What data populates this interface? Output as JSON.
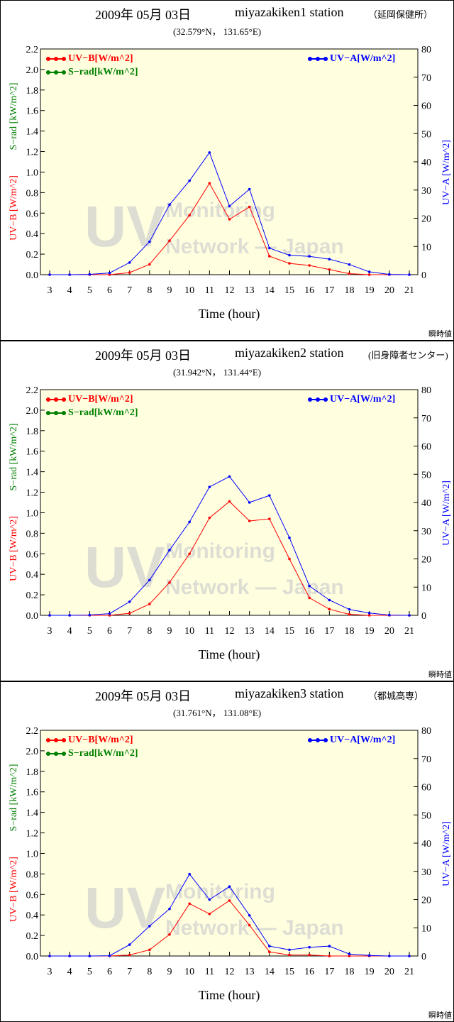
{
  "colors": {
    "uvb": "#ff0000",
    "srad": "#008000",
    "uva": "#0000ff",
    "plot_bg": "#ffffe0"
  },
  "watermark": [
    "UV",
    "Monitoring",
    "Network — Japan"
  ],
  "chart_data": [
    {
      "type": "line",
      "date": "2009年 05月 03日",
      "station": "miyazakiken1 station",
      "place": "（延岡保健所）",
      "coords": "(32.579°N， 131.65°E)",
      "mode_label": "瞬時値",
      "xlabel": "Time (hour)",
      "ylabel_left_red": "UV−B [W/m^2]",
      "ylabel_left_green": "S−rad [kW/m^2]",
      "ylabel_right": "UV−A [W/m^2]",
      "x": [
        3,
        4,
        5,
        6,
        7,
        8,
        9,
        10,
        11,
        12,
        13,
        14,
        15,
        16,
        17,
        18,
        19,
        20,
        21
      ],
      "xlim": [
        3,
        21
      ],
      "ylim_left": [
        0,
        2.2
      ],
      "ylim_right": [
        0,
        80
      ],
      "yticks_left": [
        "0.0",
        "0.2",
        "0.4",
        "0.6",
        "0.8",
        "1.0",
        "1.2",
        "1.4",
        "1.6",
        "1.8",
        "2.0",
        "2.2"
      ],
      "yticks_right": [
        "0",
        "10",
        "20",
        "30",
        "40",
        "50",
        "60",
        "70",
        "80"
      ],
      "legend": [
        "UV−B[W/m^2]",
        "S−rad[kW/m^2]",
        "UV−A[W/m^2]"
      ],
      "series": [
        {
          "name": "UV−B[W/m^2]",
          "axis": "left",
          "color": "#ff0000",
          "x": [
            3,
            4,
            5,
            6,
            7,
            8,
            9,
            10,
            11,
            12,
            13,
            14,
            15,
            16,
            17,
            18,
            19,
            20,
            21
          ],
          "values": [
            0,
            0,
            0,
            0,
            0.02,
            0.1,
            0.33,
            0.58,
            0.89,
            0.54,
            0.66,
            0.18,
            0.11,
            0.09,
            0.05,
            0.01,
            0,
            0,
            0
          ]
        },
        {
          "name": "UV−A[W/m^2]",
          "axis": "right",
          "color": "#0000ff",
          "x": [
            3,
            4,
            5,
            6,
            7,
            8,
            9,
            10,
            11,
            12,
            13,
            14,
            15,
            16,
            17,
            18,
            19,
            20,
            21
          ],
          "values": [
            0,
            0,
            0.1,
            0.6,
            4.3,
            11.7,
            24.8,
            33.3,
            43.3,
            24.3,
            30.3,
            9.4,
            6.9,
            6.5,
            5.5,
            3.6,
            1,
            0.1,
            0
          ]
        }
      ]
    },
    {
      "type": "line",
      "date": "2009年 05月 03日",
      "station": "miyazakiken2 station",
      "place": "(旧身障者センター)",
      "coords": "(31.942°N， 131.44°E)",
      "mode_label": "瞬時値",
      "xlabel": "Time (hour)",
      "ylabel_left_red": "UV−B [W/m^2]",
      "ylabel_left_green": "S−rad [kW/m^2]",
      "ylabel_right": "UV−A [W/m^2]",
      "x": [
        3,
        4,
        5,
        6,
        7,
        8,
        9,
        10,
        11,
        12,
        13,
        14,
        15,
        16,
        17,
        18,
        19,
        20,
        21
      ],
      "xlim": [
        3,
        21
      ],
      "ylim_left": [
        0,
        2.2
      ],
      "ylim_right": [
        0,
        80
      ],
      "yticks_left": [
        "0.0",
        "0.2",
        "0.4",
        "0.6",
        "0.8",
        "1.0",
        "1.2",
        "1.4",
        "1.6",
        "1.8",
        "2.0",
        "2.2"
      ],
      "yticks_right": [
        "0",
        "10",
        "20",
        "30",
        "40",
        "50",
        "60",
        "70",
        "80"
      ],
      "legend": [
        "UV−B[W/m^2]",
        "S−rad[kW/m^2]",
        "UV−A[W/m^2]"
      ],
      "series": [
        {
          "name": "UV−B[W/m^2]",
          "axis": "left",
          "color": "#ff0000",
          "x": [
            3,
            4,
            5,
            6,
            7,
            8,
            9,
            10,
            11,
            12,
            13,
            14,
            15,
            16,
            17,
            18,
            19,
            20,
            21
          ],
          "values": [
            0,
            0,
            0,
            0,
            0.02,
            0.11,
            0.32,
            0.6,
            0.95,
            1.11,
            0.92,
            0.94,
            0.55,
            0.17,
            0.06,
            0.01,
            0,
            0,
            0
          ]
        },
        {
          "name": "UV−A[W/m^2]",
          "axis": "right",
          "color": "#0000ff",
          "x": [
            3,
            4,
            5,
            6,
            7,
            8,
            9,
            10,
            11,
            12,
            13,
            14,
            15,
            16,
            17,
            18,
            19,
            20,
            21
          ],
          "values": [
            0,
            0,
            0.1,
            0.6,
            4.8,
            12.5,
            23.1,
            33.1,
            45.5,
            49.2,
            40,
            42.5,
            27.5,
            10.4,
            5.4,
            2.1,
            0.8,
            0.1,
            0
          ]
        }
      ]
    },
    {
      "type": "line",
      "date": "2009年 05月 03日",
      "station": "miyazakiken3 station",
      "place": "（都城高専）",
      "coords": "(31.761°N， 131.08°E)",
      "mode_label": "瞬時値",
      "xlabel": "Time (hour)",
      "ylabel_left_red": "UV−B [W/m^2]",
      "ylabel_left_green": "S−rad [kW/m^2]",
      "ylabel_right": "UV−A [W/m^2]",
      "x": [
        3,
        4,
        5,
        6,
        7,
        8,
        9,
        10,
        11,
        12,
        13,
        14,
        15,
        16,
        17,
        18,
        19,
        20,
        21
      ],
      "xlim": [
        3,
        21
      ],
      "ylim_left": [
        0,
        2.2
      ],
      "ylim_right": [
        0,
        80
      ],
      "yticks_left": [
        "0.0",
        "0.2",
        "0.4",
        "0.6",
        "0.8",
        "1.0",
        "1.2",
        "1.4",
        "1.6",
        "1.8",
        "2.0",
        "2.2"
      ],
      "yticks_right": [
        "0",
        "10",
        "20",
        "30",
        "40",
        "50",
        "60",
        "70",
        "80"
      ],
      "legend": [
        "UV−B[W/m^2]",
        "S−rad[kW/m^2]",
        "UV−A[W/m^2]"
      ],
      "series": [
        {
          "name": "UV−B[W/m^2]",
          "axis": "left",
          "color": "#ff0000",
          "x": [
            3,
            4,
            5,
            6,
            7,
            8,
            9,
            10,
            11,
            12,
            13,
            14,
            15,
            16,
            17,
            18,
            19,
            20,
            21
          ],
          "values": [
            0,
            0,
            0,
            0,
            0.01,
            0.06,
            0.21,
            0.51,
            0.41,
            0.54,
            0.3,
            0.04,
            0.01,
            0.01,
            0,
            0,
            0,
            0,
            0
          ]
        },
        {
          "name": "UV−A[W/m^2]",
          "axis": "right",
          "color": "#0000ff",
          "x": [
            3,
            4,
            5,
            6,
            7,
            8,
            9,
            10,
            11,
            12,
            13,
            14,
            15,
            16,
            17,
            18,
            19,
            20,
            21
          ],
          "values": [
            0,
            0,
            0,
            0.1,
            4,
            10.6,
            16.7,
            29,
            20,
            24.6,
            14.4,
            3.5,
            2.2,
            3.1,
            3.5,
            0.7,
            0.2,
            0,
            0
          ]
        }
      ]
    }
  ]
}
